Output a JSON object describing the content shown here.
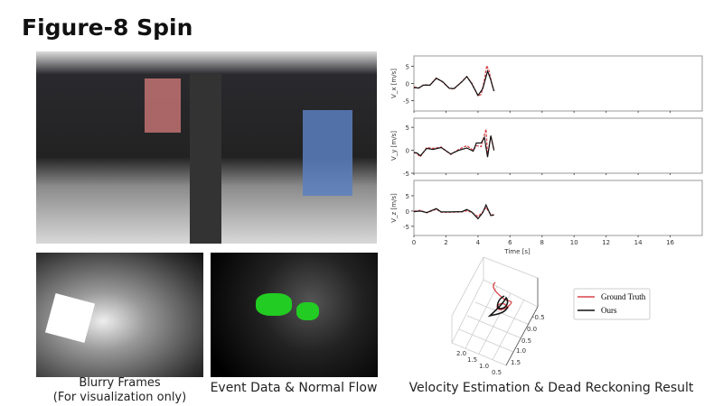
{
  "title": "Figure-8 Spin",
  "captions": {
    "blurry_line1": "Blurry Frames",
    "blurry_line2": "(For visualization only)",
    "event": "Event Data & Normal Flow",
    "velocity": "Velocity Estimation & Dead Reckoning Result"
  },
  "colors": {
    "ground_truth": "#d9434b",
    "ours": "#111111"
  },
  "chart_data": [
    {
      "type": "line",
      "xlabel": "Time [s]",
      "ylabel": "V_x [m/s]",
      "xlim": [
        0,
        18
      ],
      "ylim": [
        -8,
        8
      ],
      "xticks": [
        0,
        2,
        4,
        6,
        8,
        10,
        12,
        14,
        16
      ],
      "yticks": [
        -5,
        0,
        5
      ],
      "series": [
        {
          "name": "Ground Truth",
          "style": "dashed",
          "x": [
            0,
            0.3,
            0.6,
            1,
            1.4,
            1.8,
            2.2,
            2.5,
            3,
            3.3,
            3.6,
            4,
            4.2,
            4.4,
            4.55,
            4.7,
            4.85,
            5
          ],
          "y": [
            -1.0,
            -1.4,
            -0.4,
            -0.5,
            1.6,
            0.4,
            -1.4,
            -1.6,
            0.6,
            2.0,
            0.2,
            -3.6,
            -3.2,
            1,
            5.2,
            3.5,
            0,
            -2.2
          ]
        },
        {
          "name": "Ours",
          "x": [
            0,
            0.3,
            0.6,
            1,
            1.4,
            1.8,
            2.2,
            2.5,
            3,
            3.3,
            3.6,
            4,
            4.3,
            4.6,
            4.8,
            5
          ],
          "y": [
            -1.2,
            -1.3,
            -0.5,
            -0.5,
            1.5,
            0.5,
            -1.4,
            -1.5,
            0.5,
            2.0,
            0,
            -3.5,
            -1.5,
            3.6,
            1,
            -2.2
          ]
        }
      ]
    },
    {
      "type": "line",
      "ylabel": "V_y [m/s]",
      "xlim": [
        0,
        18
      ],
      "ylim": [
        -5,
        7
      ],
      "yticks": [
        -5,
        0,
        5
      ],
      "series": [
        {
          "name": "Ground Truth",
          "style": "dashed",
          "x": [
            0,
            0.2,
            0.4,
            0.8,
            1.2,
            1.7,
            2.3,
            2.8,
            3.3,
            3.7,
            3.9,
            4.2,
            4.5,
            4.6,
            4.8,
            5
          ],
          "y": [
            -0.4,
            -0.8,
            -1.4,
            0.6,
            0.4,
            0.7,
            -0.9,
            0.2,
            1.0,
            0,
            1.0,
            0.8,
            4.6,
            -1.0,
            3,
            0
          ]
        },
        {
          "name": "Ours",
          "x": [
            0,
            0.2,
            0.4,
            0.8,
            1.2,
            1.7,
            2.3,
            2.8,
            3.3,
            3.7,
            3.9,
            4.2,
            4.4,
            4.6,
            4.8,
            5
          ],
          "y": [
            -0.5,
            -0.6,
            -1.2,
            0.4,
            0.2,
            0.6,
            -0.8,
            0,
            0.5,
            -0.2,
            1.6,
            1.6,
            2.8,
            -1.5,
            3.2,
            0
          ]
        }
      ]
    },
    {
      "type": "line",
      "ylabel": "V_z [m/s]",
      "xlim": [
        0,
        18
      ],
      "ylim": [
        -8,
        10
      ],
      "yticks": [
        -5,
        0,
        5
      ],
      "series": [
        {
          "name": "Ground Truth",
          "style": "dashed",
          "x": [
            0,
            0.4,
            0.8,
            1.4,
            1.7,
            2.2,
            3,
            3.3,
            3.6,
            4,
            4.3,
            4.5,
            4.8,
            5
          ],
          "y": [
            -0.1,
            0.2,
            -0.6,
            0.6,
            -0.4,
            -0.4,
            -0.3,
            0.1,
            -0.4,
            -1.8,
            -0.3,
            1.2,
            -1.2,
            -1.2
          ]
        },
        {
          "name": "Ours",
          "x": [
            0,
            0.4,
            0.8,
            1.4,
            1.7,
            2.2,
            3,
            3.3,
            3.6,
            4,
            4.3,
            4.5,
            4.8,
            5
          ],
          "y": [
            -0.2,
            0,
            -0.5,
            0.8,
            -0.3,
            -0.3,
            -0.2,
            0.5,
            -0.3,
            -2.5,
            -0.5,
            2,
            -1.5,
            -1.3
          ]
        }
      ]
    },
    {
      "type": "line3d",
      "legend": [
        "Ground Truth",
        "Ours"
      ],
      "legend_position": "right",
      "yticks": [
        "-0.5",
        "0.0",
        "0.5",
        "1.0",
        "1.5"
      ],
      "xticks": [
        "2.0",
        "1.5",
        "1.0",
        "0.5"
      ]
    }
  ]
}
